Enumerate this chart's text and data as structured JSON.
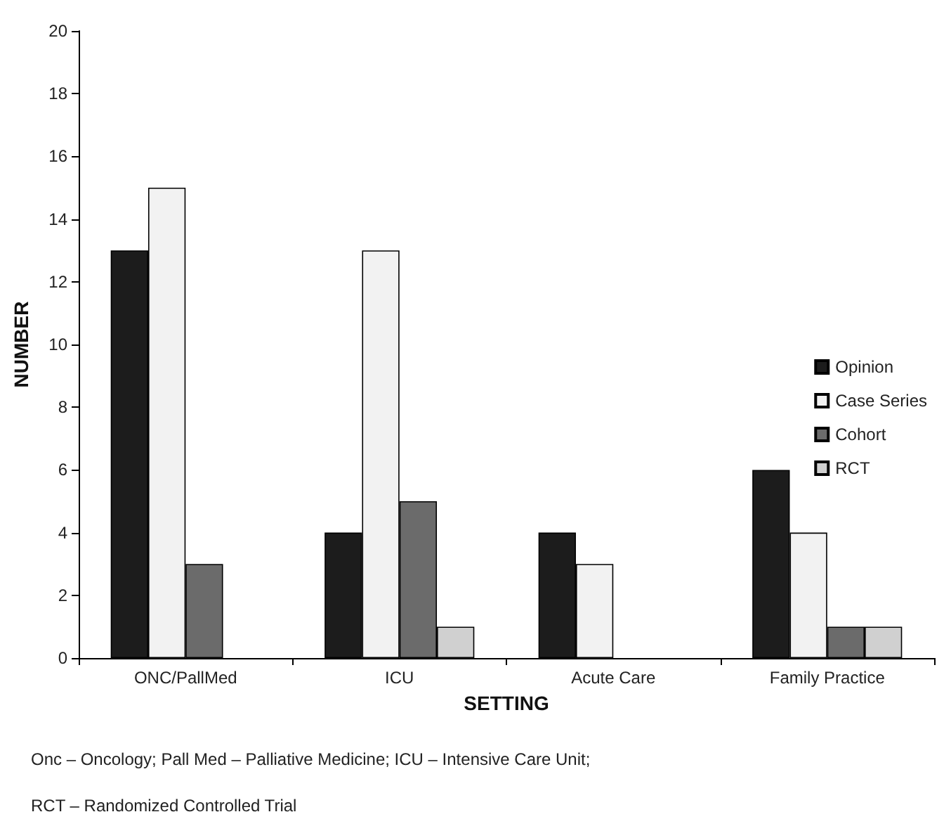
{
  "chart_data": {
    "type": "bar",
    "xlabel": "SETTING",
    "ylabel": "NUMBER",
    "categories": [
      "ONC/PallMed",
      "ICU",
      "Acute Care",
      "Family Practice"
    ],
    "series": [
      {
        "name": "Opinion",
        "color": "#1c1c1c",
        "values": [
          13,
          4,
          4,
          6
        ]
      },
      {
        "name": "Case Series",
        "color": "#f2f2f2",
        "values": [
          15,
          13,
          3,
          4
        ]
      },
      {
        "name": "Cohort",
        "color": "#6b6b6b",
        "values": [
          3,
          5,
          null,
          1
        ]
      },
      {
        "name": "RCT",
        "color": "#d0d0d0",
        "values": [
          null,
          1,
          null,
          1
        ]
      }
    ],
    "ylim": [
      0,
      20
    ],
    "yticks": [
      0,
      2,
      4,
      6,
      8,
      10,
      12,
      14,
      16,
      18,
      20
    ],
    "grid": false,
    "legend": "right",
    "annotations": [
      "Onc – Oncology; Pall Med – Palliative Medicine; ICU – Intensive Care Unit;",
      "RCT – Randomized Controlled Trial"
    ]
  }
}
